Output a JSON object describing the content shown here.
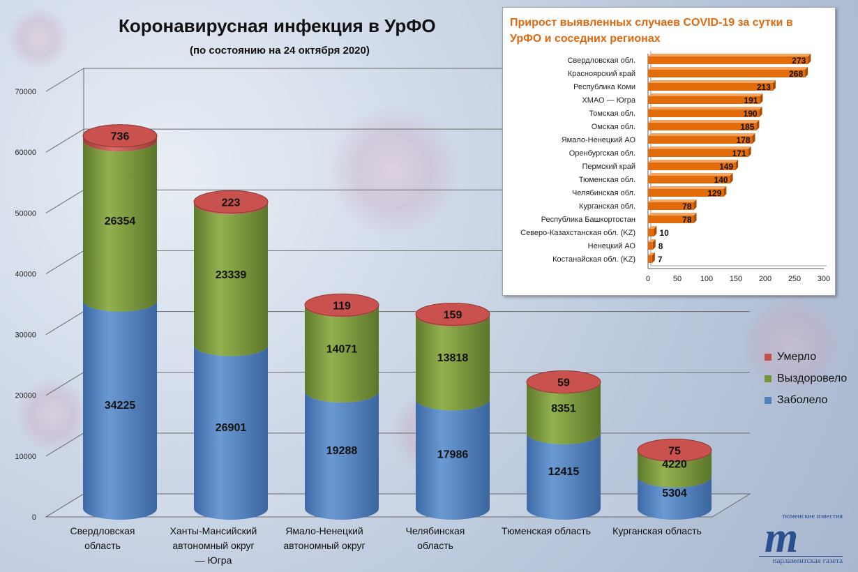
{
  "header": {
    "title": "Коронавирусная инфекция в УрФО",
    "subtitle": "(по состоянию на 24 октября 2020)"
  },
  "legend": {
    "items": [
      {
        "label": "Умерло",
        "color": "#c0504d"
      },
      {
        "label": "Выздоровело",
        "color": "#77933c"
      },
      {
        "label": "Заболело",
        "color": "#4f81bd"
      }
    ]
  },
  "inset": {
    "title": "Прирост выявленных случаев COVID-19 за сутки в УрФО и соседних регионах"
  },
  "logo": {
    "top": "тюменские известия",
    "mark": "m",
    "bottom": "парламентская газета"
  },
  "chart_data": [
    {
      "type": "bar",
      "stacked": true,
      "title": "Коронавирусная инфекция в УрФО",
      "subtitle": "(по состоянию на 24 октября 2020)",
      "categories": [
        "Свердловская\nобласть",
        "Ханты-Мансийский\nавтономный округ\n— Югра",
        "Ямало-Ненецкий\nавтономный округ",
        "Челябинская\nобласть",
        "Тюменская область",
        "Курганская область"
      ],
      "series": [
        {
          "name": "Заболело",
          "color": "#4f81bd",
          "values": [
            34225,
            26901,
            19288,
            17986,
            12415,
            5304
          ]
        },
        {
          "name": "Выздоровело",
          "color": "#77933c",
          "values": [
            26354,
            23339,
            14071,
            13818,
            8351,
            4220
          ]
        },
        {
          "name": "Умерло",
          "color": "#c0504d",
          "values": [
            736,
            223,
            119,
            159,
            59,
            75
          ]
        }
      ],
      "ylim": [
        0,
        70000
      ],
      "yticks": [
        0,
        10000,
        20000,
        30000,
        40000,
        50000,
        60000,
        70000
      ],
      "grid": true,
      "legend": "right"
    },
    {
      "type": "bar",
      "orientation": "horizontal",
      "title": "Прирост выявленных случаев COVID-19 за сутки в УрФО и соседних регионах",
      "color": "#e36c0a",
      "categories": [
        "Свердловская обл.",
        "Красноярский край",
        "Республика Коми",
        "ХМАО — Югра",
        "Томская обл.",
        "Омская обл.",
        "Ямало-Ненецкий АО",
        "Оренбургская обл.",
        "Пермский край",
        "Тюменская обл.",
        "Челябинская обл.",
        "Курганская обл.",
        "Республика Башкортостан",
        "Северо-Казахстанская обл. (KZ)",
        "Ненецкий АО",
        "Костанайская обл. (KZ)"
      ],
      "values": [
        273,
        268,
        213,
        191,
        190,
        185,
        178,
        171,
        149,
        140,
        129,
        78,
        78,
        10,
        8,
        7
      ],
      "xlim": [
        0,
        300
      ],
      "xticks": [
        0,
        50,
        100,
        150,
        200,
        250,
        300
      ]
    }
  ]
}
